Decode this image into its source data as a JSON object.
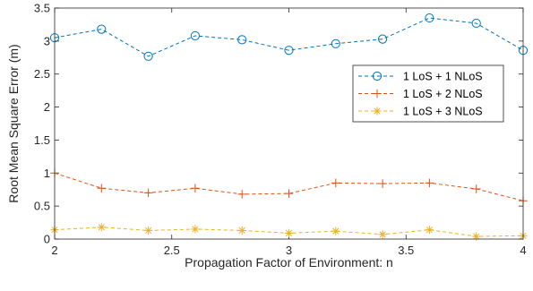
{
  "chart_data": {
    "type": "line",
    "title": "",
    "xlabel": "Propagation Factor of Environment: n",
    "ylabel": "Root Mean Square Error (m)",
    "xlim": [
      2,
      4
    ],
    "ylim": [
      0,
      3.5
    ],
    "x_ticks": [
      "2",
      "2.5",
      "3",
      "3.5",
      "4"
    ],
    "y_ticks": [
      "0",
      "0.5",
      "1",
      "1.5",
      "2",
      "2.5",
      "3",
      "3.5"
    ],
    "x": [
      2.0,
      2.2,
      2.4,
      2.6,
      2.8,
      3.0,
      3.2,
      3.4,
      3.6,
      3.8,
      4.0
    ],
    "grid": false,
    "legend_position": "right",
    "series": [
      {
        "name": "1 LoS + 1 NLoS",
        "color": "#0072BD",
        "marker": "circle",
        "values": [
          3.05,
          3.18,
          2.77,
          3.08,
          3.02,
          2.86,
          2.96,
          3.03,
          3.35,
          3.27,
          2.86
        ]
      },
      {
        "name": "1 LoS + 2 NLoS",
        "color": "#D95319",
        "marker": "plus",
        "values": [
          1.0,
          0.77,
          0.7,
          0.77,
          0.68,
          0.69,
          0.85,
          0.84,
          0.85,
          0.76,
          0.58
        ]
      },
      {
        "name": "1 LoS + 3 NLoS",
        "color": "#EDB120",
        "marker": "asterisk",
        "values": [
          0.14,
          0.18,
          0.13,
          0.15,
          0.13,
          0.09,
          0.12,
          0.07,
          0.14,
          0.04,
          0.05
        ]
      }
    ]
  }
}
